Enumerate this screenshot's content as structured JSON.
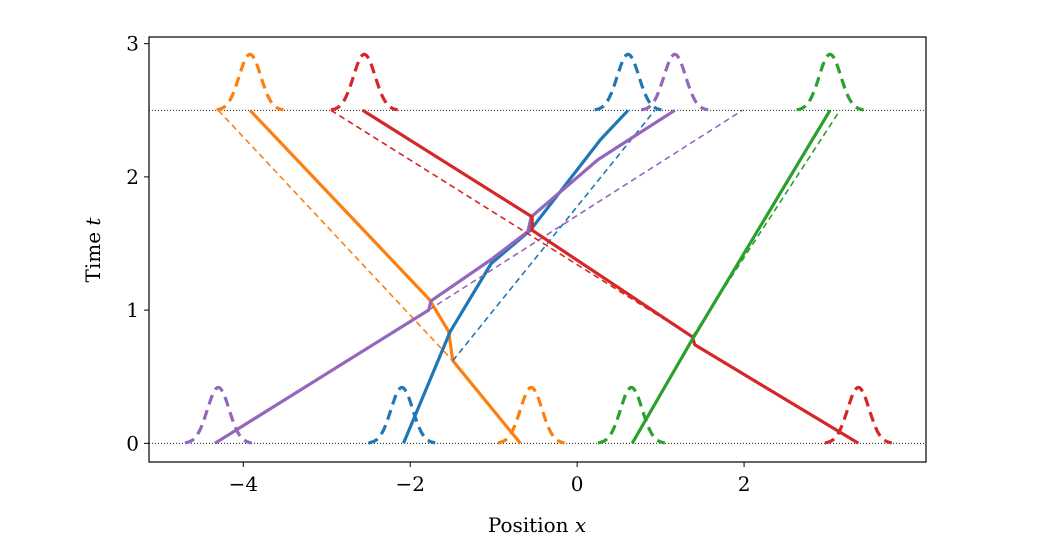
{
  "chart_data": {
    "type": "line",
    "title": "",
    "xlabel": "Position",
    "xlabel_var": "x",
    "ylabel": "Time",
    "ylabel_var": "t",
    "xlim": [
      -5.13,
      4.18
    ],
    "ylim": [
      -0.14,
      3.05
    ],
    "xticks": [
      -4,
      -2,
      0,
      2
    ],
    "xtick_labels": [
      "−4",
      "−2",
      "0",
      "2"
    ],
    "yticks": [
      0,
      1,
      2,
      3
    ],
    "ytick_labels": [
      "0",
      "1",
      "2",
      "3"
    ],
    "grid": false,
    "reference_lines": [
      0,
      2.5
    ],
    "gaussian": {
      "height": 0.42,
      "sigma": 0.13,
      "halfwidth": 0.4
    },
    "series": [
      {
        "color": "#ff7f0e",
        "solid": [
          [
            -3.92,
            2.5
          ],
          [
            -1.77,
            1.08
          ],
          [
            -1.54,
            0.84
          ],
          [
            -1.49,
            0.62
          ],
          [
            -0.68,
            0
          ]
        ],
        "dashed": [
          [
            -4.3,
            2.5
          ],
          [
            -1.49,
            0.62
          ]
        ],
        "gaussians": [
          [
            -0.55,
            0
          ],
          [
            -3.92,
            2.5
          ]
        ]
      },
      {
        "color": "#1f77b4",
        "solid": [
          [
            -2.08,
            0
          ],
          [
            -1.52,
            0.84
          ],
          [
            -1.03,
            1.35
          ],
          [
            -0.56,
            1.6
          ],
          [
            0.28,
            2.28
          ],
          [
            0.61,
            2.5
          ]
        ],
        "dashed": [
          [
            -1.49,
            0.62
          ],
          [
            0.93,
            2.5
          ]
        ],
        "gaussians": [
          [
            -2.1,
            0
          ],
          [
            0.61,
            2.5
          ]
        ]
      },
      {
        "color": "#9467bd",
        "solid": [
          [
            -4.34,
            0
          ],
          [
            -1.78,
            1.0
          ],
          [
            -1.75,
            1.07
          ],
          [
            -1.03,
            1.38
          ],
          [
            -0.59,
            1.59
          ],
          [
            -0.55,
            1.7
          ],
          [
            0.25,
            2.13
          ],
          [
            1.17,
            2.5
          ]
        ],
        "dashed": [
          [
            -1.78,
            1.0
          ],
          [
            1.98,
            2.5
          ]
        ],
        "gaussians": [
          [
            -4.3,
            0
          ],
          [
            1.17,
            2.5
          ]
        ]
      },
      {
        "color": "#d62728",
        "solid": [
          [
            3.37,
            0
          ],
          [
            1.41,
            0.74
          ],
          [
            1.38,
            0.8
          ],
          [
            -0.54,
            1.6
          ],
          [
            -0.54,
            1.7
          ],
          [
            -2.57,
            2.5
          ]
        ],
        "dashed": [
          [
            -2.95,
            2.5
          ],
          [
            1.38,
            0.8
          ]
        ],
        "gaussians": [
          [
            3.37,
            0
          ],
          [
            -2.55,
            2.5
          ]
        ]
      },
      {
        "color": "#2ca02c",
        "solid": [
          [
            0.66,
            0
          ],
          [
            1.37,
            0.77
          ],
          [
            3.03,
            2.5
          ]
        ],
        "dashed": [
          [
            1.38,
            0.8
          ],
          [
            3.15,
            2.5
          ]
        ],
        "gaussians": [
          [
            0.65,
            0
          ],
          [
            3.03,
            2.5
          ]
        ]
      }
    ]
  }
}
